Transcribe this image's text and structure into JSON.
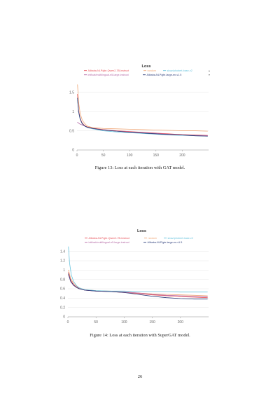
{
  "page_number": "26",
  "figures": [
    {
      "caption": "Figure 13: Loss at each iteration with GAT model.",
      "legend_nav": {
        "up": "▴",
        "down": "▾"
      },
      "chart_data": {
        "type": "line",
        "title": "Loss",
        "xlabel": "",
        "ylabel": "",
        "xlim": [
          0,
          250
        ],
        "ylim": [
          0,
          1.75
        ],
        "x_ticks": [
          0,
          50,
          100,
          150,
          200
        ],
        "y_ticks": [
          0,
          0.5,
          1,
          1.5
        ],
        "y_tick_labels": [
          "0",
          "0.5",
          "1",
          "1.5"
        ],
        "grid": true,
        "legend_position": "top",
        "series": [
          {
            "name": "Alibaba-NLP/gte-Qwen2-7B-instruct",
            "color": "#e8525a",
            "points": [
              [
                1,
                1.45
              ],
              [
                3,
                1.05
              ],
              [
                6,
                0.82
              ],
              [
                10,
                0.7
              ],
              [
                15,
                0.63
              ],
              [
                20,
                0.6
              ],
              [
                30,
                0.57
              ],
              [
                50,
                0.53
              ],
              [
                75,
                0.5
              ],
              [
                100,
                0.48
              ],
              [
                125,
                0.46
              ],
              [
                150,
                0.44
              ],
              [
                175,
                0.42
              ],
              [
                200,
                0.4
              ],
              [
                225,
                0.39
              ],
              [
                248,
                0.38
              ]
            ]
          },
          {
            "name": "random",
            "color": "#f0a878",
            "points": [
              [
                1,
                1.7
              ],
              [
                3,
                1.25
              ],
              [
                6,
                0.95
              ],
              [
                10,
                0.78
              ],
              [
                15,
                0.68
              ],
              [
                20,
                0.62
              ],
              [
                30,
                0.58
              ],
              [
                50,
                0.56
              ],
              [
                75,
                0.55
              ],
              [
                100,
                0.54
              ],
              [
                125,
                0.53
              ],
              [
                150,
                0.52
              ],
              [
                175,
                0.51
              ],
              [
                200,
                0.5
              ],
              [
                225,
                0.5
              ],
              [
                248,
                0.49
              ]
            ]
          },
          {
            "name": "sivaz/phobert-base-v2",
            "color": "#67c3dd",
            "points": [
              [
                1,
                1.3
              ],
              [
                3,
                1.0
              ],
              [
                6,
                0.8
              ],
              [
                10,
                0.68
              ],
              [
                15,
                0.62
              ],
              [
                20,
                0.58
              ],
              [
                30,
                0.55
              ],
              [
                50,
                0.5
              ],
              [
                75,
                0.47
              ],
              [
                100,
                0.45
              ],
              [
                125,
                0.43
              ],
              [
                150,
                0.41
              ],
              [
                175,
                0.39
              ],
              [
                200,
                0.38
              ],
              [
                225,
                0.37
              ],
              [
                248,
                0.36
              ]
            ]
          },
          {
            "name": "intfloat/multilingual-e5-large-instruct",
            "color": "#b56aa6",
            "points": [
              [
                1,
                0.72
              ],
              [
                5,
                0.68
              ],
              [
                10,
                0.65
              ],
              [
                15,
                0.62
              ],
              [
                20,
                0.59
              ],
              [
                30,
                0.56
              ],
              [
                50,
                0.52
              ],
              [
                75,
                0.49
              ],
              [
                100,
                0.47
              ],
              [
                125,
                0.45
              ],
              [
                150,
                0.43
              ],
              [
                175,
                0.41
              ],
              [
                200,
                0.39
              ],
              [
                225,
                0.38
              ],
              [
                248,
                0.37
              ]
            ]
          },
          {
            "name": "Alibaba-NLP/gte-large-en-v1.5",
            "color": "#2c3d7a",
            "points": [
              [
                1,
                1.35
              ],
              [
                3,
                1.0
              ],
              [
                6,
                0.8
              ],
              [
                10,
                0.68
              ],
              [
                15,
                0.62
              ],
              [
                20,
                0.59
              ],
              [
                30,
                0.56
              ],
              [
                50,
                0.52
              ],
              [
                75,
                0.49
              ],
              [
                100,
                0.46
              ],
              [
                125,
                0.44
              ],
              [
                150,
                0.42
              ],
              [
                175,
                0.4
              ],
              [
                200,
                0.39
              ],
              [
                225,
                0.37
              ],
              [
                248,
                0.36
              ]
            ]
          }
        ]
      }
    },
    {
      "caption": "Figure 14: Loss at each iteration with SuperGAT model.",
      "legend_nav": {
        "up": "",
        "down": ""
      },
      "chart_data": {
        "type": "line",
        "title": "Loss",
        "xlabel": "",
        "ylabel": "",
        "xlim": [
          0,
          250
        ],
        "ylim": [
          0,
          1.5
        ],
        "x_ticks": [
          0,
          50,
          100,
          150,
          200
        ],
        "y_ticks": [
          0,
          0.2,
          0.4,
          0.6,
          0.8,
          1,
          1.2,
          1.4
        ],
        "y_tick_labels": [
          "0",
          "0.2",
          "0.4",
          "0.6",
          "0.8",
          "1",
          "1.2",
          "1.4"
        ],
        "grid": true,
        "legend_position": "top",
        "series": [
          {
            "name": "Alibaba-NLP/gte-Qwen2-7B-instruct",
            "color": "#e8525a",
            "points": [
              [
                1,
                0.95
              ],
              [
                5,
                0.78
              ],
              [
                10,
                0.69
              ],
              [
                15,
                0.64
              ],
              [
                20,
                0.61
              ],
              [
                30,
                0.57
              ],
              [
                50,
                0.55
              ],
              [
                75,
                0.54
              ],
              [
                100,
                0.52
              ],
              [
                125,
                0.5
              ],
              [
                150,
                0.47
              ],
              [
                175,
                0.45
              ],
              [
                200,
                0.43
              ],
              [
                225,
                0.42
              ],
              [
                248,
                0.41
              ]
            ]
          },
          {
            "name": "random",
            "color": "#f0a878",
            "points": [
              [
                1,
                1.0
              ],
              [
                5,
                0.82
              ],
              [
                10,
                0.72
              ],
              [
                15,
                0.66
              ],
              [
                20,
                0.62
              ],
              [
                30,
                0.58
              ],
              [
                50,
                0.56
              ],
              [
                75,
                0.55
              ],
              [
                100,
                0.53
              ],
              [
                125,
                0.51
              ],
              [
                150,
                0.49
              ],
              [
                175,
                0.48
              ],
              [
                200,
                0.47
              ],
              [
                225,
                0.46
              ],
              [
                248,
                0.45
              ]
            ]
          },
          {
            "name": "sivaz/phobert-base-v2",
            "color": "#67c3dd",
            "points": [
              [
                1,
                1.5
              ],
              [
                3,
                1.15
              ],
              [
                6,
                0.9
              ],
              [
                10,
                0.76
              ],
              [
                15,
                0.67
              ],
              [
                20,
                0.62
              ],
              [
                30,
                0.58
              ],
              [
                50,
                0.56
              ],
              [
                75,
                0.55
              ],
              [
                100,
                0.55
              ],
              [
                125,
                0.54
              ],
              [
                150,
                0.54
              ],
              [
                175,
                0.54
              ],
              [
                200,
                0.53
              ],
              [
                225,
                0.53
              ],
              [
                248,
                0.53
              ]
            ]
          },
          {
            "name": "intfloat/multilingual-e5-large-instruct",
            "color": "#b56aa6",
            "points": [
              [
                1,
                0.9
              ],
              [
                5,
                0.75
              ],
              [
                10,
                0.67
              ],
              [
                15,
                0.63
              ],
              [
                20,
                0.6
              ],
              [
                30,
                0.57
              ],
              [
                50,
                0.55
              ],
              [
                75,
                0.54
              ],
              [
                100,
                0.53
              ],
              [
                125,
                0.51
              ],
              [
                150,
                0.48
              ],
              [
                175,
                0.46
              ],
              [
                200,
                0.45
              ],
              [
                225,
                0.44
              ],
              [
                248,
                0.43
              ]
            ]
          },
          {
            "name": "Alibaba-NLP/gte-large-en-v1.5",
            "color": "#2c3d7a",
            "points": [
              [
                1,
                0.92
              ],
              [
                5,
                0.76
              ],
              [
                10,
                0.68
              ],
              [
                15,
                0.63
              ],
              [
                20,
                0.6
              ],
              [
                30,
                0.57
              ],
              [
                50,
                0.55
              ],
              [
                75,
                0.54
              ],
              [
                100,
                0.52
              ],
              [
                125,
                0.48
              ],
              [
                150,
                0.44
              ],
              [
                175,
                0.41
              ],
              [
                200,
                0.39
              ],
              [
                225,
                0.38
              ],
              [
                248,
                0.38
              ]
            ]
          }
        ]
      }
    }
  ]
}
